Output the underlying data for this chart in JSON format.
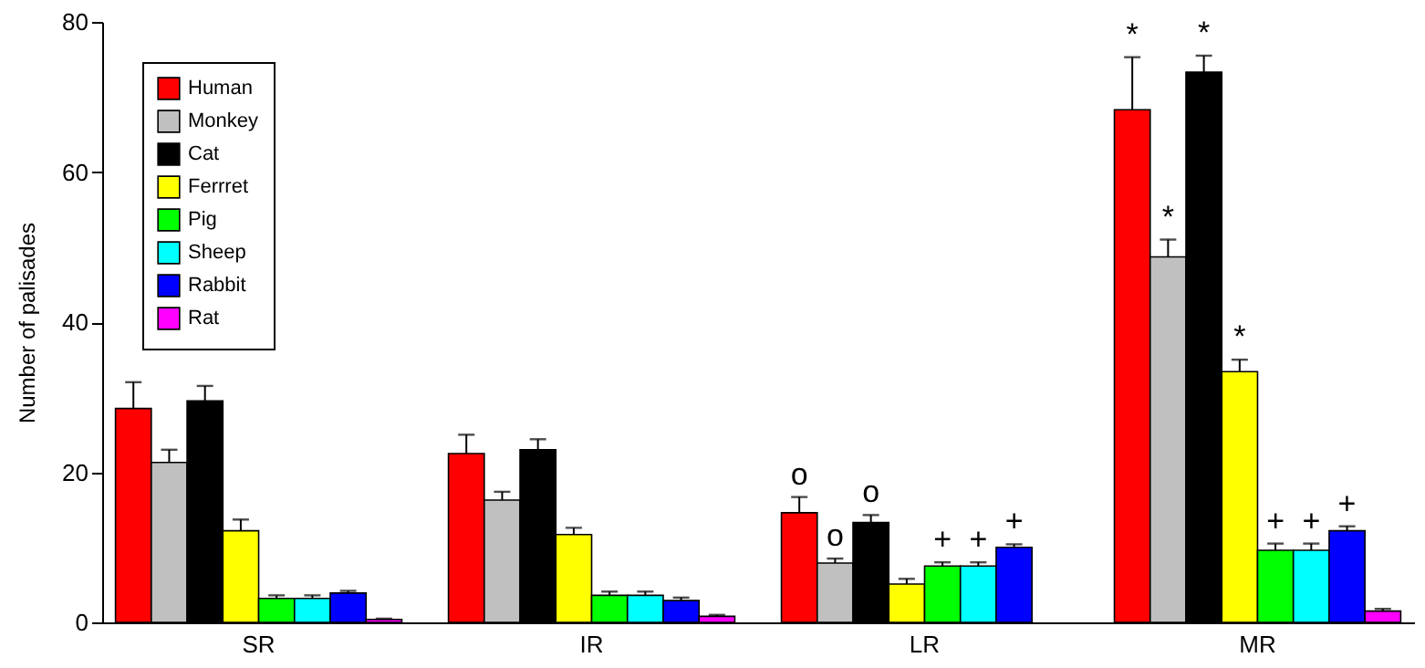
{
  "chart_data": {
    "type": "bar",
    "ylabel": "Number of palisades",
    "categories": [
      "SR",
      "IR",
      "LR",
      "MR"
    ],
    "ylim": [
      0,
      80
    ],
    "yticks": [
      0,
      20,
      40,
      60,
      80
    ],
    "grid": false,
    "legend": "top left",
    "series": [
      {
        "name": "Human",
        "color": "#ff0000",
        "values": [
          28.5,
          22.5,
          14.6,
          68.3
        ],
        "errors": [
          [
            28.5,
            32
          ],
          [
            22.5,
            25
          ],
          [
            14.6,
            16.7
          ],
          [
            68.3,
            75.3
          ]
        ],
        "value_labels": [
          null,
          null,
          "o",
          "*"
        ]
      },
      {
        "name": "Monkey",
        "color": "#c0c0c0",
        "values": [
          21.3,
          16.3,
          7.9,
          48.7
        ],
        "errors": [
          [
            21.3,
            23
          ],
          [
            16.3,
            17.4
          ],
          [
            7.9,
            8.5
          ],
          [
            48.7,
            51
          ]
        ],
        "value_labels": [
          null,
          null,
          "o",
          "*"
        ]
      },
      {
        "name": "Cat",
        "color": "#000000",
        "values": [
          29.5,
          23,
          13.3,
          73.3
        ],
        "errors": [
          [
            29.5,
            31.5
          ],
          [
            23,
            24.4
          ],
          [
            13.3,
            14.3
          ],
          [
            73.3,
            75.5
          ]
        ],
        "value_labels": [
          null,
          null,
          "o",
          "*"
        ]
      },
      {
        "name": "Ferrret",
        "color": "#ffff00",
        "values": [
          12.2,
          11.7,
          5.1,
          33.4
        ],
        "errors": [
          [
            12.2,
            13.7
          ],
          [
            11.7,
            12.6
          ],
          [
            5.1,
            5.8
          ],
          [
            33.4,
            35
          ]
        ],
        "value_labels": [
          null,
          null,
          null,
          "*"
        ]
      },
      {
        "name": "Pig",
        "color": "#00ff00",
        "values": [
          3.2,
          3.6,
          7.5,
          9.6
        ],
        "errors": [
          [
            3.2,
            3.6
          ],
          [
            3.6,
            4.1
          ],
          [
            7.5,
            8
          ],
          [
            9.6,
            10.5
          ]
        ],
        "value_labels": [
          null,
          null,
          "+",
          "+"
        ]
      },
      {
        "name": "Sheep",
        "color": "#00ffff",
        "values": [
          3.2,
          3.6,
          7.5,
          9.6
        ],
        "errors": [
          [
            3.2,
            3.6
          ],
          [
            3.6,
            4.1
          ],
          [
            7.5,
            8
          ],
          [
            9.6,
            10.5
          ]
        ],
        "value_labels": [
          null,
          null,
          "+",
          "+"
        ]
      },
      {
        "name": "Rabbit",
        "color": "#0000ff",
        "values": [
          3.9,
          2.9,
          10,
          12.2
        ],
        "errors": [
          [
            3.9,
            4.2
          ],
          [
            2.9,
            3.3
          ],
          [
            10,
            10.4
          ],
          [
            12.2,
            12.8
          ]
        ],
        "value_labels": [
          null,
          null,
          "+",
          "+"
        ]
      },
      {
        "name": "Rat",
        "color": "#ff00ff",
        "values": [
          0.4,
          0.8,
          null,
          1.5
        ],
        "errors": [
          [
            0.4,
            0.5
          ],
          [
            0.8,
            1
          ],
          null,
          [
            1.5,
            1.8
          ]
        ]
      }
    ]
  }
}
